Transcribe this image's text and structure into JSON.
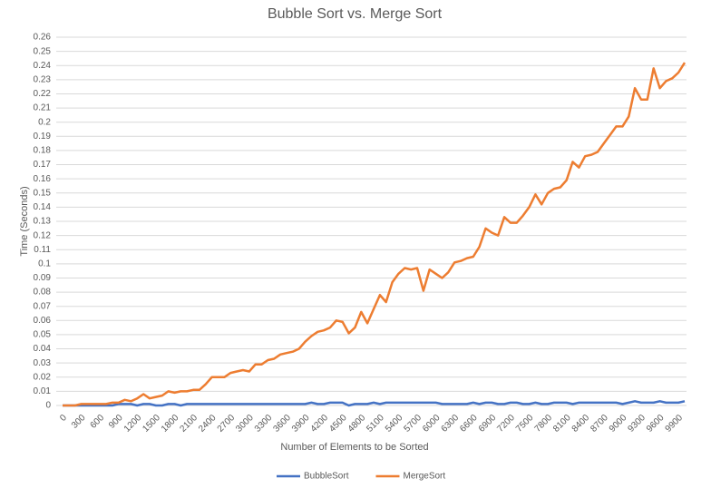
{
  "chart_data": {
    "type": "line",
    "title": "Bubble Sort vs. Merge Sort",
    "x_label": "Number of Elements to be Sorted",
    "y_label": "Time (Seconds)",
    "categories": [
      0,
      null,
      null,
      300,
      null,
      null,
      600,
      null,
      null,
      900,
      null,
      null,
      1200,
      null,
      null,
      1500,
      null,
      null,
      1800,
      null,
      null,
      2100,
      null,
      null,
      2400,
      null,
      null,
      2700,
      null,
      null,
      3000,
      null,
      null,
      3300,
      null,
      null,
      3600,
      null,
      null,
      3900,
      null,
      null,
      4200,
      null,
      null,
      4500,
      null,
      null,
      4800,
      null,
      null,
      5100,
      null,
      null,
      5400,
      null,
      null,
      5700,
      null,
      null,
      6000,
      null,
      null,
      6300,
      null,
      null,
      6600,
      null,
      null,
      6900,
      null,
      null,
      7200,
      null,
      null,
      7500,
      null,
      null,
      7800,
      null,
      null,
      8100,
      null,
      null,
      8400,
      null,
      null,
      8700,
      null,
      null,
      9000,
      null,
      null,
      9300,
      null,
      null,
      9600,
      null,
      null,
      9900,
      null
    ],
    "series": [
      {
        "name": "BubbleSort",
        "color": "#4472c4",
        "values": [
          0,
          0,
          0,
          0,
          0,
          0,
          0,
          0,
          0,
          0.001,
          0.001,
          0.001,
          0,
          0.001,
          0.001,
          0,
          0,
          0.001,
          0.001,
          0,
          0.001,
          0.001,
          0.001,
          0.001,
          0.001,
          0.001,
          0.001,
          0.001,
          0.001,
          0.001,
          0.001,
          0.001,
          0.001,
          0.001,
          0.001,
          0.001,
          0.001,
          0.001,
          0.001,
          0.001,
          0.002,
          0.001,
          0.001,
          0.002,
          0.002,
          0.002,
          0,
          0.001,
          0.001,
          0.001,
          0.002,
          0.001,
          0.002,
          0.002,
          0.002,
          0.002,
          0.002,
          0.002,
          0.002,
          0.002,
          0.002,
          0.001,
          0.001,
          0.001,
          0.001,
          0.001,
          0.002,
          0.001,
          0.002,
          0.002,
          0.001,
          0.001,
          0.002,
          0.002,
          0.001,
          0.001,
          0.002,
          0.001,
          0.001,
          0.002,
          0.002,
          0.002,
          0.001,
          0.002,
          0.002,
          0.002,
          0.002,
          0.002,
          0.002,
          0.002,
          0.001,
          0.002,
          0.003,
          0.002,
          0.002,
          0.002,
          0.003,
          0.002,
          0.002,
          0.002,
          0.003
        ]
      },
      {
        "name": "MergeSort",
        "color": "#ed7d31",
        "values": [
          0,
          0,
          0,
          0.001,
          0.001,
          0.001,
          0.001,
          0.001,
          0.002,
          0.002,
          0.004,
          0.003,
          0.005,
          0.008,
          0.005,
          0.006,
          0.007,
          0.01,
          0.009,
          0.01,
          0.01,
          0.011,
          0.011,
          0.015,
          0.02,
          0.02,
          0.02,
          0.023,
          0.024,
          0.025,
          0.024,
          0.029,
          0.029,
          0.032,
          0.033,
          0.036,
          0.037,
          0.038,
          0.04,
          0.045,
          0.049,
          0.052,
          0.053,
          0.055,
          0.06,
          0.059,
          0.051,
          0.055,
          0.066,
          0.058,
          0.068,
          0.078,
          0.073,
          0.087,
          0.093,
          0.097,
          0.096,
          0.097,
          0.081,
          0.096,
          0.093,
          0.09,
          0.094,
          0.101,
          0.102,
          0.104,
          0.105,
          0.112,
          0.125,
          0.122,
          0.12,
          0.133,
          0.129,
          0.129,
          0.134,
          0.14,
          0.149,
          0.142,
          0.15,
          0.153,
          0.154,
          0.159,
          0.172,
          0.168,
          0.176,
          0.177,
          0.179,
          0.185,
          0.191,
          0.197,
          0.197,
          0.204,
          0.224,
          0.216,
          0.216,
          0.238,
          0.224,
          0.229,
          0.231,
          0.235,
          0.242
        ]
      }
    ],
    "ylim": [
      0,
      0.26
    ],
    "yticks": [
      0,
      0.01,
      0.02,
      0.03,
      0.04,
      0.05,
      0.06,
      0.07,
      0.08,
      0.09,
      0.1,
      0.11,
      0.12,
      0.13,
      0.14,
      0.15,
      0.16,
      0.17,
      0.18,
      0.19,
      0.2,
      0.21,
      0.22,
      0.23,
      0.24,
      0.25,
      0.26
    ],
    "grid": true,
    "legend": "bottom"
  }
}
